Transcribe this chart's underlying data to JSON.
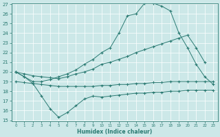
{
  "xlabel": "Humidex (Indice chaleur)",
  "x_values": [
    0,
    1,
    2,
    3,
    4,
    5,
    6,
    7,
    8,
    9,
    10,
    11,
    12,
    13,
    14,
    15,
    16,
    17,
    18,
    19,
    20,
    21,
    22,
    23
  ],
  "line_top": [
    20.0,
    19.5,
    19.0,
    19.0,
    19.2,
    19.5,
    19.8,
    20.2,
    20.8,
    21.3,
    22.0,
    22.5,
    24.0,
    25.8,
    26.0,
    27.1,
    27.1,
    26.8,
    26.3,
    24.0,
    22.5,
    20.8,
    19.5,
    18.7
  ],
  "line_mid_upper": [
    20.0,
    19.8,
    19.6,
    19.5,
    19.4,
    19.3,
    19.5,
    19.8,
    20.0,
    20.3,
    20.8,
    21.0,
    21.3,
    21.6,
    22.0,
    22.3,
    22.6,
    22.9,
    23.2,
    23.5,
    23.8,
    22.5,
    21.0,
    null
  ],
  "line_mid_lower": [
    19.0,
    18.9,
    18.8,
    18.7,
    18.6,
    18.5,
    18.5,
    18.5,
    18.5,
    18.5,
    18.6,
    18.6,
    18.7,
    18.7,
    18.8,
    18.8,
    18.9,
    18.9,
    19.0,
    19.0,
    19.0,
    19.0,
    19.0,
    19.0
  ],
  "line_bottom": [
    20.0,
    19.5,
    18.8,
    17.5,
    16.2,
    15.3,
    15.8,
    16.5,
    17.2,
    17.5,
    17.4,
    17.5,
    17.6,
    17.7,
    17.8,
    17.8,
    17.9,
    17.9,
    18.0,
    18.0,
    18.1,
    18.1,
    18.1,
    18.1
  ],
  "ylim": [
    15,
    27
  ],
  "xlim": [
    -0.5,
    23.5
  ],
  "yticks": [
    15,
    16,
    17,
    18,
    19,
    20,
    21,
    22,
    23,
    24,
    25,
    26,
    27
  ],
  "xticks": [
    0,
    1,
    2,
    3,
    4,
    5,
    6,
    7,
    8,
    9,
    10,
    11,
    12,
    13,
    14,
    15,
    16,
    17,
    18,
    19,
    20,
    21,
    22,
    23
  ],
  "line_color": "#2a7a72",
  "bg_color": "#cce8e8",
  "grid_color": "#b8d8d8",
  "marker": "+",
  "marker_size": 3.5,
  "lw": 0.7
}
